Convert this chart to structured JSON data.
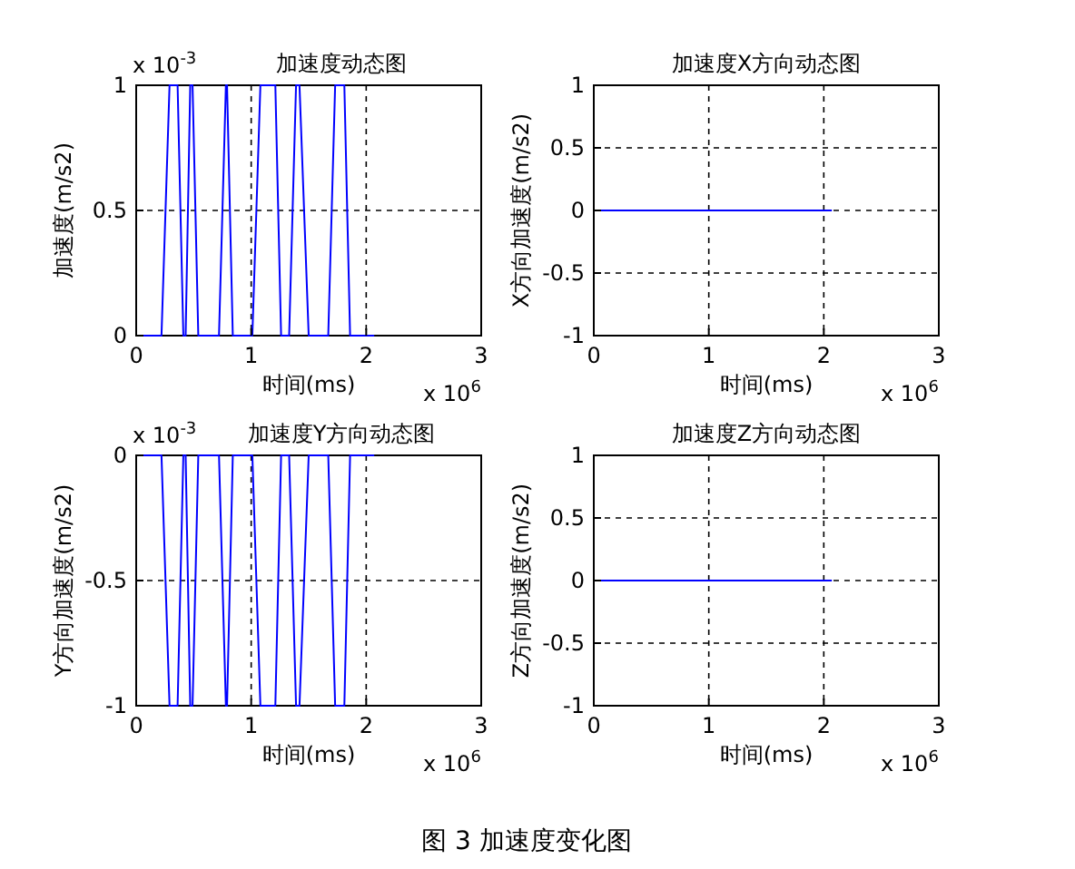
{
  "chart_data": [
    {
      "type": "line",
      "title": "加速度动态图",
      "xlabel": "时间(ms)",
      "ylabel": "加速度(m/s2)",
      "xlim": [
        0,
        3
      ],
      "xticks": [
        0,
        1,
        2,
        3
      ],
      "ylim": [
        0,
        1
      ],
      "yticks": [
        0,
        0.5,
        1
      ],
      "grid": true,
      "annotations": [
        "x 10$^{-3}$",
        "x 10$^{6}$",
        "图 3  加速度变化图"
      ],
      "series": [
        {
          "color": "#0000ff",
          "x": [
            0,
            0.22,
            0.29,
            0.36,
            0.41,
            0.43,
            0.47,
            0.49,
            0.54,
            0.72,
            0.78,
            0.79,
            0.84,
            1.01,
            1.08,
            1.21,
            1.26,
            1.33,
            1.39,
            1.42,
            1.5,
            1.67,
            1.73,
            1.81,
            1.86,
            2.07
          ],
          "values": [
            0,
            0,
            1,
            1,
            0,
            0,
            1,
            1,
            0,
            0,
            1,
            1,
            0,
            0,
            1,
            1,
            0,
            0,
            1,
            1,
            0,
            0,
            1,
            1,
            0,
            0
          ]
        }
      ]
    },
    {
      "type": "line",
      "title": "加速度X方向动态图",
      "xlabel": "时间(ms)",
      "ylabel": "X方向加速度(m/s2)",
      "xlim": [
        0,
        3
      ],
      "xticks": [
        0,
        1,
        2,
        3
      ],
      "ylim": [
        -1,
        1
      ],
      "yticks": [
        -1,
        -0.5,
        0,
        0.5,
        1
      ],
      "grid": true,
      "annotations": [
        "x 10$^{6}$"
      ],
      "series": [
        {
          "color": "#0000ff",
          "x": [
            0,
            2.07
          ],
          "values": [
            0,
            0
          ]
        }
      ]
    },
    {
      "type": "line",
      "title": "加速度Y方向动态图",
      "xlabel": "时间(ms)",
      "ylabel": "Y方向加速度(m/s2)",
      "xlim": [
        0,
        3
      ],
      "xticks": [
        0,
        1,
        2,
        3
      ],
      "ylim": [
        -1,
        0
      ],
      "yticks": [
        -1,
        -0.5,
        0
      ],
      "grid": true,
      "annotations": [
        "x 10$^{-3}$",
        "x 10$^{6}$"
      ],
      "series": [
        {
          "color": "#0000ff",
          "x": [
            0,
            0.22,
            0.29,
            0.36,
            0.41,
            0.43,
            0.47,
            0.49,
            0.54,
            0.72,
            0.78,
            0.79,
            0.84,
            1.01,
            1.08,
            1.21,
            1.26,
            1.33,
            1.39,
            1.42,
            1.5,
            1.67,
            1.73,
            1.81,
            1.86,
            2.07
          ],
          "values": [
            0,
            0,
            -1,
            -1,
            0,
            0,
            -1,
            -1,
            0,
            0,
            -1,
            -1,
            0,
            0,
            -1,
            -1,
            0,
            0,
            -1,
            -1,
            0,
            0,
            -1,
            -1,
            0,
            0
          ]
        }
      ]
    },
    {
      "type": "line",
      "title": "加速度Z方向动态图",
      "xlabel": "时间(ms)",
      "ylabel": "Z方向加速度(m/s2)",
      "xlim": [
        0,
        3
      ],
      "xticks": [
        0,
        1,
        2,
        3
      ],
      "ylim": [
        -1,
        1
      ],
      "yticks": [
        -1,
        -0.5,
        0,
        0.5,
        1
      ],
      "grid": true,
      "annotations": [
        "x 10$^{6}$"
      ],
      "series": [
        {
          "color": "#0000ff",
          "x": [
            0,
            2.07
          ],
          "values": [
            0,
            0
          ]
        }
      ]
    }
  ]
}
